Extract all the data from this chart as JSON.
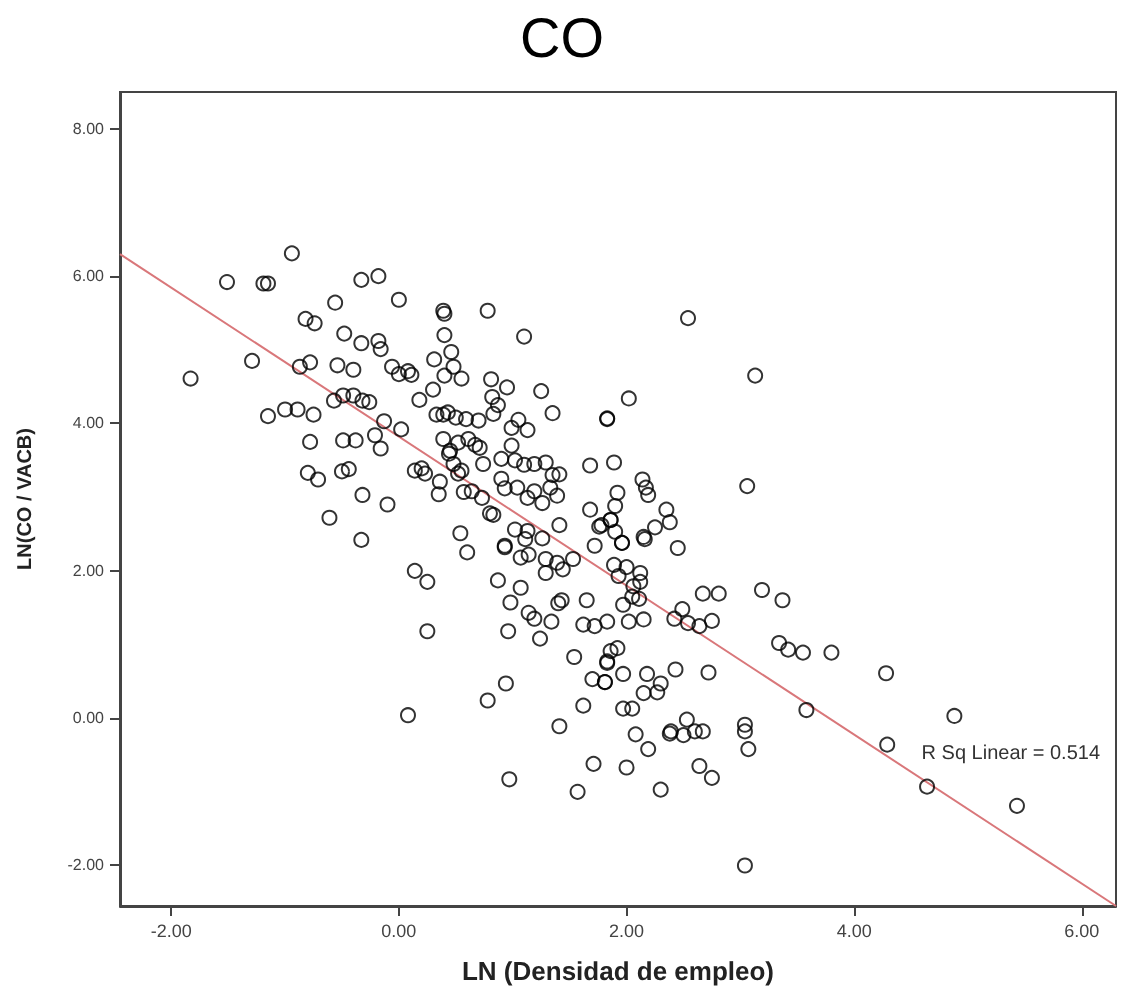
{
  "chart_data": {
    "type": "scatter",
    "title": "CO",
    "xlabel": "LN (Densidad de empleo)",
    "ylabel": "LN(CO / VACB)",
    "xlim": [
      -2.45,
      6.3
    ],
    "ylim": [
      -2.55,
      8.5
    ],
    "xticks": [
      {
        "value": -2,
        "label": "-2.00"
      },
      {
        "value": 0,
        "label": "0.00"
      },
      {
        "value": 2,
        "label": "2.00"
      },
      {
        "value": 4,
        "label": "4.00"
      },
      {
        "value": 6,
        "label": "6.00"
      }
    ],
    "yticks": [
      {
        "value": -2,
        "label": "-2.00"
      },
      {
        "value": 0,
        "label": "0.00"
      },
      {
        "value": 2,
        "label": "2.00"
      },
      {
        "value": 4,
        "label": "4.00"
      },
      {
        "value": 6,
        "label": "6.00"
      },
      {
        "value": 8,
        "label": "8.00"
      }
    ],
    "annotations": [
      "R Sq Linear = 0.514"
    ],
    "series": [
      {
        "color": "#000000",
        "marker": "circle",
        "x": [
          -1.83,
          -1.51,
          -1.19,
          -1.15,
          -0.94,
          -1.29,
          -1.15,
          -1.0,
          -0.89,
          -0.75,
          -0.82,
          -0.74,
          -0.87,
          -0.78,
          -0.56,
          -0.48,
          -0.33,
          -0.33,
          -0.18,
          0.0,
          -0.18,
          -0.16,
          -0.54,
          -0.4,
          -0.57,
          -0.49,
          -0.4,
          -0.32,
          -0.26,
          -0.78,
          -0.49,
          -0.38,
          -0.13,
          0.02,
          -0.21,
          -0.16,
          -0.8,
          -0.71,
          -0.5,
          -0.44,
          -0.32,
          -0.1,
          -0.61,
          -0.33,
          -0.06,
          0.0,
          0.08,
          0.11,
          0.39,
          0.4,
          0.4,
          0.31,
          0.46,
          0.4,
          0.55,
          0.48,
          0.78,
          1.1,
          0.18,
          0.3,
          0.81,
          0.82,
          0.87,
          0.95,
          1.25,
          1.35,
          0.33,
          0.39,
          0.43,
          0.5,
          0.59,
          0.7,
          0.83,
          0.99,
          1.13,
          1.05,
          0.39,
          0.45,
          0.52,
          0.61,
          0.67,
          0.71,
          0.74,
          0.9,
          0.99,
          1.02,
          1.1,
          1.19,
          1.29,
          1.35,
          1.41,
          0.14,
          0.2,
          0.23,
          0.36,
          0.35,
          0.44,
          0.48,
          0.52,
          0.55,
          0.57,
          0.64,
          0.73,
          0.83,
          0.8,
          0.9,
          0.93,
          1.04,
          1.13,
          1.19,
          1.26,
          1.33,
          1.39,
          1.02,
          1.13,
          1.41,
          1.26,
          1.83,
          1.68,
          1.68,
          1.78,
          1.86,
          0.54,
          0.93,
          1.11,
          2.54,
          3.13,
          2.02,
          1.83,
          1.89,
          3.06,
          2.14,
          2.17,
          2.19,
          1.92,
          1.9,
          2.35,
          2.38,
          2.25,
          2.15,
          1.86,
          1.76,
          1.9,
          1.96,
          2.45,
          0.14,
          0.25,
          0.25,
          0.08,
          0.78,
          0.94,
          0.97,
          1.41,
          1.57,
          1.71,
          1.62,
          1.54,
          1.7,
          1.81,
          0.87,
          1.07,
          0.98,
          1.14,
          1.19,
          1.34,
          1.24,
          0.96,
          1.43,
          1.4,
          1.65,
          1.62,
          1.72,
          1.83,
          0.6,
          0.93,
          1.07,
          1.14,
          1.29,
          1.39,
          1.53,
          1.72,
          1.29,
          1.44,
          1.86,
          1.83,
          2.16,
          1.96,
          1.89,
          2.0,
          1.93,
          2.12,
          2.12,
          2.06,
          2.05,
          2.11,
          1.97,
          2.02,
          2.15,
          2.49,
          2.67,
          2.81,
          3.19,
          3.37,
          2.75,
          2.42,
          2.54,
          2.64,
          3.34,
          3.42,
          3.55,
          3.8,
          4.28,
          1.92,
          1.83,
          1.81,
          1.97,
          2.43,
          2.18,
          2.15,
          2.27,
          2.3,
          2.72,
          1.97,
          2.05,
          2.08,
          2.19,
          2.39,
          2.53,
          2.5,
          2.6,
          2.67,
          2.38,
          3.04,
          3.04,
          3.07,
          2.0,
          2.3,
          2.64,
          2.75,
          3.58,
          4.29,
          4.88,
          4.64,
          5.43,
          3.04
        ],
        "values": [
          4.61,
          5.92,
          5.9,
          5.9,
          6.31,
          4.85,
          4.1,
          4.19,
          4.19,
          4.12,
          5.42,
          5.36,
          4.77,
          4.83,
          5.64,
          5.22,
          5.09,
          5.95,
          6.0,
          5.68,
          5.12,
          5.01,
          4.79,
          4.73,
          4.31,
          4.38,
          4.38,
          4.31,
          4.29,
          3.75,
          3.77,
          3.77,
          4.03,
          3.92,
          3.84,
          3.66,
          3.33,
          3.24,
          3.35,
          3.38,
          3.03,
          2.9,
          2.72,
          2.42,
          4.77,
          4.67,
          4.71,
          4.66,
          5.53,
          5.49,
          5.2,
          4.87,
          4.97,
          4.65,
          4.61,
          4.77,
          5.53,
          5.18,
          4.32,
          4.46,
          4.6,
          4.36,
          4.25,
          4.49,
          4.44,
          4.14,
          4.12,
          4.12,
          4.15,
          4.08,
          4.06,
          4.04,
          4.13,
          3.94,
          3.91,
          4.05,
          3.79,
          3.63,
          3.74,
          3.79,
          3.71,
          3.67,
          3.45,
          3.52,
          3.7,
          3.5,
          3.44,
          3.45,
          3.47,
          3.3,
          3.31,
          3.36,
          3.39,
          3.32,
          3.21,
          3.04,
          3.59,
          3.45,
          3.32,
          3.36,
          3.07,
          3.08,
          2.99,
          2.76,
          2.78,
          3.25,
          3.12,
          3.13,
          2.99,
          3.08,
          2.92,
          3.13,
          3.02,
          2.56,
          2.54,
          2.62,
          2.44,
          4.07,
          3.43,
          2.83,
          2.62,
          2.69,
          2.51,
          2.32,
          2.43,
          5.43,
          4.65,
          4.34,
          4.06,
          3.47,
          3.15,
          3.24,
          3.13,
          3.03,
          3.06,
          2.88,
          2.83,
          2.66,
          2.59,
          2.46,
          2.69,
          2.6,
          2.53,
          2.38,
          2.31,
          2.0,
          1.85,
          1.18,
          0.04,
          0.24,
          0.47,
          -0.83,
          -0.11,
          -1.0,
          -0.62,
          0.17,
          0.83,
          0.53,
          0.49,
          1.87,
          1.77,
          1.57,
          1.43,
          1.35,
          1.31,
          1.08,
          1.18,
          1.6,
          1.56,
          1.6,
          1.27,
          1.25,
          1.31,
          2.25,
          2.34,
          2.18,
          2.22,
          2.16,
          2.11,
          2.16,
          2.34,
          1.97,
          2.02,
          0.91,
          0.75,
          2.43,
          2.38,
          2.08,
          2.05,
          1.93,
          1.97,
          1.85,
          1.79,
          1.65,
          1.62,
          1.54,
          1.31,
          1.34,
          1.48,
          1.69,
          1.69,
          1.74,
          1.6,
          1.32,
          1.35,
          1.29,
          1.25,
          1.02,
          0.93,
          0.89,
          0.89,
          0.61,
          0.95,
          0.77,
          0.49,
          0.6,
          0.66,
          0.6,
          0.34,
          0.35,
          0.47,
          0.62,
          0.13,
          0.13,
          -0.22,
          -0.42,
          -0.18,
          -0.02,
          -0.23,
          -0.18,
          -0.18,
          -0.21,
          -0.09,
          -0.18,
          -0.42,
          -0.67,
          -0.97,
          -0.65,
          -0.81,
          0.11,
          -0.36,
          0.03,
          -0.93,
          -1.19,
          -2.0
        ]
      },
      {
        "type": "line",
        "color": "#d9777a",
        "marker": "none",
        "line_style": "solid",
        "x": [
          -2.45,
          6.3
        ],
        "values": [
          6.3,
          -2.55
        ]
      }
    ]
  }
}
